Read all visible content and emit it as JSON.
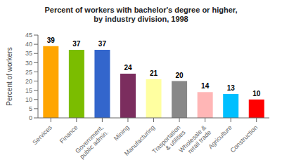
{
  "chart_data": {
    "type": "bar",
    "title": "Percent of workers with bachelor's degree or higher,\nby industry division, 1998",
    "ylabel": "Percent of workers",
    "categories": [
      "Services",
      "Finance",
      "Government,\npublic admin.",
      "Mining",
      "Manufacturing",
      "Trasportation\n& utilities",
      "Wholesale &\nretail trade",
      "Agriculture",
      "Construction"
    ],
    "values": [
      39,
      37,
      37,
      24,
      21,
      20,
      14,
      13,
      10
    ],
    "colors": [
      "#FFA500",
      "#7BBD00",
      "#3366CC",
      "#7B2D5E",
      "#FFFFA0",
      "#888888",
      "#FFB6B6",
      "#00BFFF",
      "#FF0000"
    ],
    "ylim": [
      0,
      45
    ],
    "yticks": [
      0,
      5,
      10,
      15,
      20,
      25,
      30,
      35,
      40,
      45
    ],
    "data_labels": true,
    "grid": false
  }
}
